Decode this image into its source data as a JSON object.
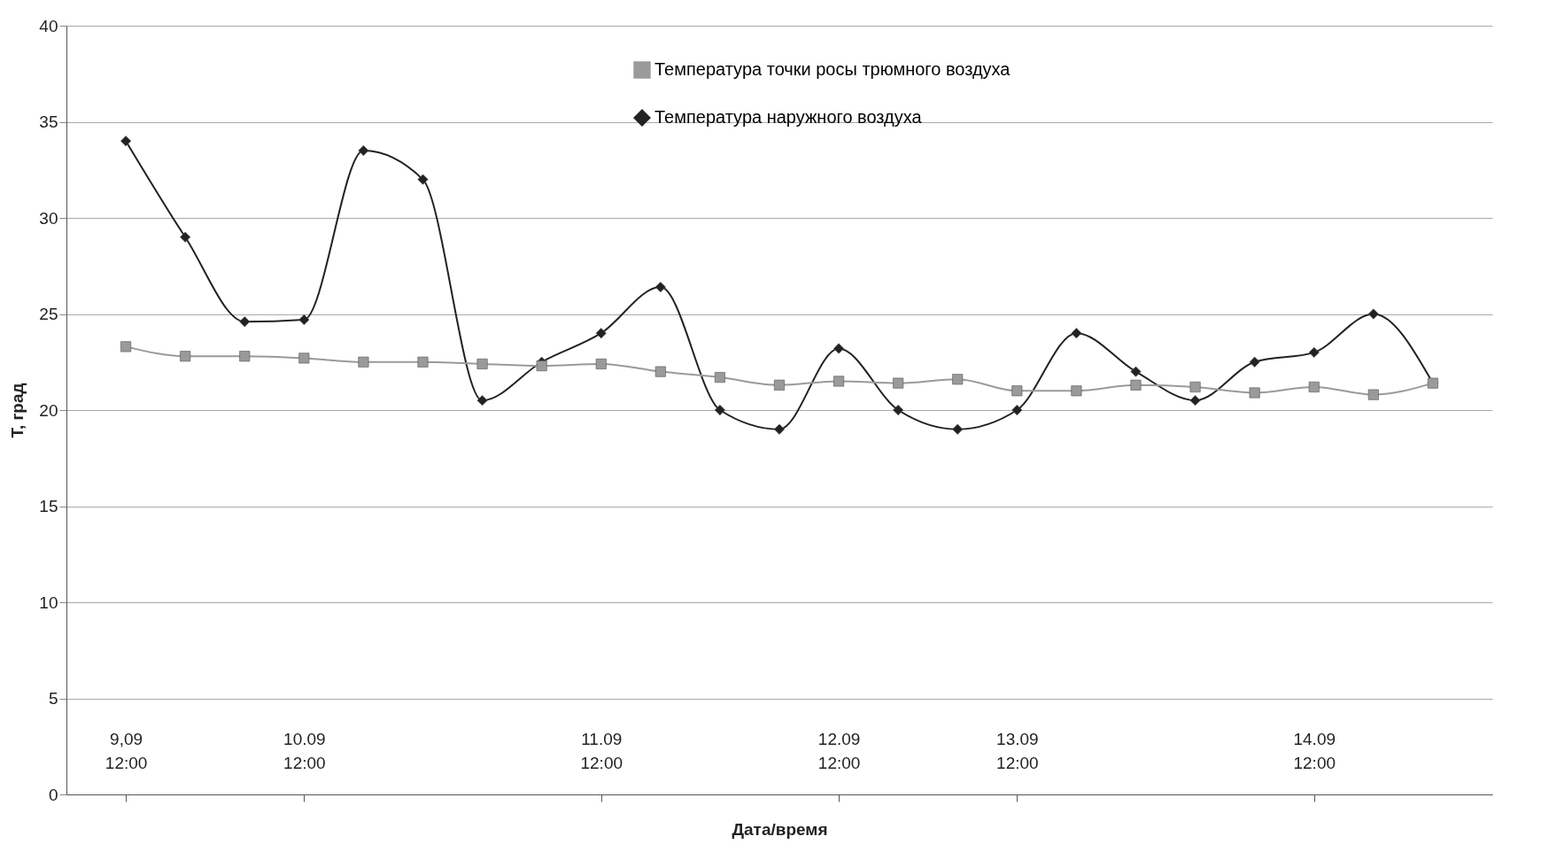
{
  "chart_data": {
    "type": "line",
    "xlabel": "Дата/время",
    "ylabel": "T, град",
    "categories": [
      "9,09 12:00",
      null,
      null,
      "10.09 12:00",
      null,
      null,
      null,
      null,
      "11.09 12:00",
      null,
      null,
      null,
      "12.09 12:00",
      null,
      null,
      "13.09 12:00",
      null,
      null,
      null,
      null,
      "14.09 12:00",
      null,
      null
    ],
    "ylim": [
      0,
      40
    ],
    "yticks": [
      0,
      5,
      10,
      15,
      20,
      25,
      30,
      35,
      40
    ],
    "grid": "y",
    "legend": "top",
    "line_style": "solid",
    "series": [
      {
        "name": "Температура точки росы трюмного воздуха",
        "color": "#9a9a9a",
        "marker": "square",
        "values": [
          23.3,
          22.8,
          22.8,
          22.7,
          22.5,
          22.5,
          22.4,
          22.3,
          22.4,
          22.0,
          21.7,
          21.3,
          21.5,
          21.4,
          21.6,
          21.0,
          21.0,
          21.3,
          21.2,
          20.9,
          21.2,
          20.8,
          21.4
        ]
      },
      {
        "name": "Температура наружного воздуха",
        "color": "#222222",
        "marker": "diamond",
        "values": [
          34.0,
          29.0,
          24.6,
          24.7,
          33.5,
          32.0,
          20.5,
          22.5,
          24.0,
          26.4,
          20.0,
          19.0,
          23.2,
          20.0,
          19.0,
          20.0,
          24.0,
          22.0,
          20.5,
          22.5,
          23.0,
          25.0,
          21.4
        ]
      }
    ]
  }
}
